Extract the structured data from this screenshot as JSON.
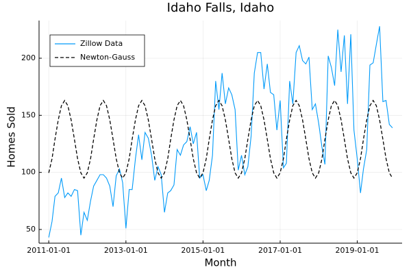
{
  "chart_data": {
    "type": "line",
    "title": "Idaho Falls, Idaho",
    "x_label": "Month",
    "y_label": "Homes Sold",
    "x": [
      "2011-01-01",
      "2011-02-01",
      "2011-03-01",
      "2011-04-01",
      "2011-05-01",
      "2011-06-01",
      "2011-07-01",
      "2011-08-01",
      "2011-09-01",
      "2011-10-01",
      "2011-11-01",
      "2011-12-01",
      "2012-01-01",
      "2012-02-01",
      "2012-03-01",
      "2012-04-01",
      "2012-05-01",
      "2012-06-01",
      "2012-07-01",
      "2012-08-01",
      "2012-09-01",
      "2012-10-01",
      "2012-11-01",
      "2012-12-01",
      "2013-01-01",
      "2013-02-01",
      "2013-03-01",
      "2013-04-01",
      "2013-05-01",
      "2013-06-01",
      "2013-07-01",
      "2013-08-01",
      "2013-09-01",
      "2013-10-01",
      "2013-11-01",
      "2013-12-01",
      "2014-01-01",
      "2014-02-01",
      "2014-03-01",
      "2014-04-01",
      "2014-05-01",
      "2014-06-01",
      "2014-07-01",
      "2014-08-01",
      "2014-09-01",
      "2014-10-01",
      "2014-11-01",
      "2014-12-01",
      "2015-01-01",
      "2015-02-01",
      "2015-03-01",
      "2015-04-01",
      "2015-05-01",
      "2015-06-01",
      "2015-07-01",
      "2015-08-01",
      "2015-09-01",
      "2015-10-01",
      "2015-11-01",
      "2015-12-01",
      "2016-01-01",
      "2016-02-01",
      "2016-03-01",
      "2016-04-01",
      "2016-05-01",
      "2016-06-01",
      "2016-07-01",
      "2016-08-01",
      "2016-09-01",
      "2016-10-01",
      "2016-11-01",
      "2016-12-01",
      "2017-01-01",
      "2017-02-01",
      "2017-03-01",
      "2017-04-01",
      "2017-05-01",
      "2017-06-01",
      "2017-07-01",
      "2017-08-01",
      "2017-09-01",
      "2017-10-01",
      "2017-11-01",
      "2017-12-01",
      "2018-01-01",
      "2018-02-01",
      "2018-03-01",
      "2018-04-01",
      "2018-05-01",
      "2018-06-01",
      "2018-07-01",
      "2018-08-01",
      "2018-09-01",
      "2018-10-01",
      "2018-11-01",
      "2018-12-01",
      "2019-01-01",
      "2019-02-01",
      "2019-03-01",
      "2019-04-01",
      "2019-05-01",
      "2019-06-01",
      "2019-07-01",
      "2019-08-01",
      "2019-09-01",
      "2019-10-01",
      "2019-11-01",
      "2019-12-01"
    ],
    "series": [
      {
        "name": "Zillow Data",
        "color": "#009af9",
        "dash": false,
        "values": [
          43,
          57,
          79,
          82,
          95,
          78,
          82,
          79,
          85,
          84,
          45,
          65,
          58,
          75,
          88,
          93,
          98,
          98,
          95,
          88,
          70,
          97,
          103,
          91,
          51,
          85,
          85,
          112,
          133,
          111,
          135,
          130,
          115,
          93,
          105,
          98,
          65,
          82,
          84,
          89,
          120,
          115,
          124,
          127,
          140,
          125,
          135,
          95,
          98,
          84,
          93,
          115,
          180,
          155,
          187,
          160,
          174,
          168,
          155,
          102,
          115,
          98,
          105,
          132,
          187,
          205,
          205,
          173,
          195,
          170,
          168,
          137,
          163,
          104,
          108,
          180,
          160,
          205,
          211,
          198,
          195,
          201,
          155,
          160,
          143,
          122,
          107,
          202,
          192,
          176,
          225,
          188,
          220,
          160,
          221,
          137,
          112,
          82,
          103,
          120,
          194,
          196,
          212,
          228,
          162,
          163,
          142,
          139
        ]
      },
      {
        "name": "Newton-Gauss",
        "color": "#000000",
        "dash": true,
        "values": [
          99.6,
          112,
          129,
          146,
          158.4,
          163,
          158.4,
          146,
          129,
          112,
          99.6,
          95,
          99.6,
          112,
          129,
          146,
          158.4,
          163,
          158.4,
          146,
          129,
          112,
          99.6,
          95,
          99.6,
          112,
          129,
          146,
          158.4,
          163,
          158.4,
          146,
          129,
          112,
          99.6,
          95,
          99.6,
          112,
          129,
          146,
          158.4,
          163,
          158.4,
          146,
          129,
          112,
          99.6,
          95,
          99.6,
          112,
          129,
          146,
          158.4,
          163,
          158.4,
          146,
          129,
          112,
          99.6,
          95,
          99.6,
          112,
          129,
          146,
          158.4,
          163,
          158.4,
          146,
          129,
          112,
          99.6,
          95,
          99.6,
          112,
          129,
          146,
          158.4,
          163,
          158.4,
          146,
          129,
          112,
          99.6,
          95,
          99.6,
          112,
          129,
          146,
          158.4,
          163,
          158.4,
          146,
          129,
          112,
          99.6,
          95,
          99.6,
          112,
          129,
          146,
          158.4,
          163,
          158.4,
          146,
          129,
          112,
          99.6,
          95
        ]
      }
    ],
    "xlim": [
      "2010-10-01",
      "2020-03-01"
    ],
    "xticks": [
      "2011-01-01",
      "2013-01-01",
      "2015-01-01",
      "2017-01-01",
      "2019-01-01"
    ],
    "ylim": [
      38,
      233
    ],
    "yticks": [
      50,
      100,
      150,
      200
    ],
    "grid": true,
    "legend": "top-left"
  }
}
